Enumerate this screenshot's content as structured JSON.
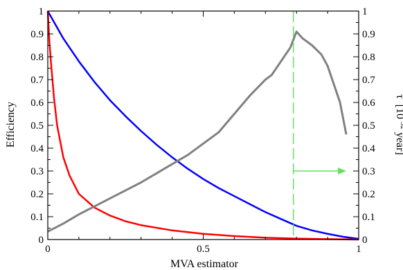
{
  "chart_data": {
    "type": "line",
    "xlabel": "MVA estimator",
    "ylabel": "Efficiency",
    "ylabel_right": {
      "symbol": "τ",
      "text_before_exp": "[10",
      "exponent": "32",
      "text_after_exp": " year]"
    },
    "xlim": [
      0,
      1
    ],
    "ylim": [
      0,
      1
    ],
    "ylim_right": [
      0,
      1
    ],
    "x_ticks": [
      {
        "value": 0,
        "label": "0"
      },
      {
        "value": 0.5,
        "label": "0.5"
      },
      {
        "value": 1,
        "label": "1"
      }
    ],
    "y_ticks": [
      {
        "value": 0,
        "label": "0"
      },
      {
        "value": 0.1,
        "label": "0.1"
      },
      {
        "value": 0.2,
        "label": "0.2"
      },
      {
        "value": 0.3,
        "label": "0.3"
      },
      {
        "value": 0.4,
        "label": "0.4"
      },
      {
        "value": 0.5,
        "label": "0.5"
      },
      {
        "value": 0.6,
        "label": "0.6"
      },
      {
        "value": 0.7,
        "label": "0.7"
      },
      {
        "value": 0.8,
        "label": "0.8"
      },
      {
        "value": 0.9,
        "label": "0.9"
      },
      {
        "value": 1,
        "label": "1"
      }
    ],
    "y_ticks_right": [
      {
        "value": 0,
        "label": "0"
      },
      {
        "value": 0.1,
        "label": "0.1"
      },
      {
        "value": 0.2,
        "label": "0.2"
      },
      {
        "value": 0.3,
        "label": "0.3"
      },
      {
        "value": 0.4,
        "label": "0.4"
      },
      {
        "value": 0.5,
        "label": "0.5"
      },
      {
        "value": 0.6,
        "label": "0.6"
      },
      {
        "value": 0.7,
        "label": "0.7"
      },
      {
        "value": 0.8,
        "label": "0.8"
      },
      {
        "value": 0.9,
        "label": "0.9"
      },
      {
        "value": 1,
        "label": "1"
      }
    ],
    "grid": false,
    "series": [
      {
        "color": "#0000ff",
        "axis": "left",
        "x": [
          0,
          0.05,
          0.1,
          0.15,
          0.2,
          0.25,
          0.3,
          0.35,
          0.4,
          0.45,
          0.5,
          0.55,
          0.6,
          0.65,
          0.7,
          0.75,
          0.8,
          0.85,
          0.9,
          0.95,
          1.0
        ],
        "y": [
          1.0,
          0.88,
          0.78,
          0.69,
          0.61,
          0.54,
          0.475,
          0.415,
          0.36,
          0.31,
          0.265,
          0.225,
          0.19,
          0.155,
          0.12,
          0.09,
          0.06,
          0.04,
          0.025,
          0.012,
          0.003
        ]
      },
      {
        "color": "#ff0000",
        "axis": "left",
        "x": [
          0,
          0.005,
          0.01,
          0.02,
          0.03,
          0.05,
          0.07,
          0.1,
          0.15,
          0.2,
          0.25,
          0.3,
          0.4,
          0.5,
          0.6,
          0.7,
          0.8,
          0.9,
          1.0
        ],
        "y": [
          1.0,
          0.87,
          0.78,
          0.62,
          0.5,
          0.36,
          0.28,
          0.2,
          0.14,
          0.105,
          0.08,
          0.063,
          0.04,
          0.025,
          0.015,
          0.008,
          0.004,
          0.002,
          0.0
        ]
      },
      {
        "color": "#808080",
        "axis": "right",
        "x": [
          0,
          0.05,
          0.1,
          0.15,
          0.2,
          0.25,
          0.3,
          0.35,
          0.4,
          0.45,
          0.5,
          0.55,
          0.6,
          0.65,
          0.7,
          0.72,
          0.75,
          0.78,
          0.8,
          0.82,
          0.85,
          0.88,
          0.9,
          0.92,
          0.94,
          0.96
        ],
        "y": [
          0.035,
          0.07,
          0.11,
          0.145,
          0.18,
          0.215,
          0.25,
          0.29,
          0.33,
          0.37,
          0.42,
          0.47,
          0.55,
          0.63,
          0.7,
          0.72,
          0.78,
          0.84,
          0.91,
          0.88,
          0.85,
          0.81,
          0.76,
          0.68,
          0.6,
          0.46
        ]
      }
    ],
    "annotations": {
      "cut_line": {
        "x": 0.79,
        "color": "#66dd66",
        "style": "dashed"
      },
      "arrow": {
        "from_x": 0.79,
        "to_x": 0.96,
        "y_right": 0.3,
        "color": "#66dd66"
      }
    }
  }
}
